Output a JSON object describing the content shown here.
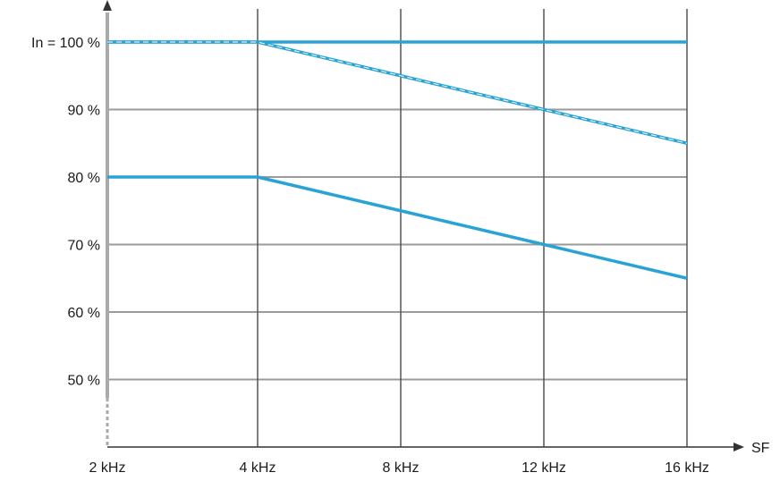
{
  "chart_data": {
    "type": "line",
    "x_tick_labels": [
      "2 kHz",
      "4 kHz",
      "8 kHz",
      "12 kHz",
      "16 kHz"
    ],
    "x_ticks": [
      2,
      4,
      8,
      12,
      16
    ],
    "y_tick_labels": [
      "In = 100 %",
      "90 %",
      "80 %",
      "70 %",
      "60 %",
      "50 %"
    ],
    "y_ticks": [
      100,
      90,
      80,
      70,
      60,
      50
    ],
    "xlabel": "SF",
    "ylabel": "",
    "xlim": [
      2,
      16
    ],
    "ylim": [
      40,
      100
    ],
    "x_scale": "categorical-equal-spacing",
    "grid": true,
    "legend": "none",
    "series": [
      {
        "style": "solid",
        "color": "#29a3d6",
        "x": [
          2,
          4,
          8,
          12,
          16
        ],
        "y": [
          100,
          100,
          100,
          100,
          100
        ]
      },
      {
        "style": "dashed",
        "color": "#29a3d6",
        "x": [
          2,
          4,
          8,
          12,
          16
        ],
        "y": [
          100,
          100,
          95,
          90,
          85
        ]
      },
      {
        "style": "solid",
        "color": "#29a3d6",
        "x": [
          2,
          4,
          8,
          12,
          16
        ],
        "y": [
          80,
          80,
          75,
          70,
          65
        ]
      }
    ]
  }
}
